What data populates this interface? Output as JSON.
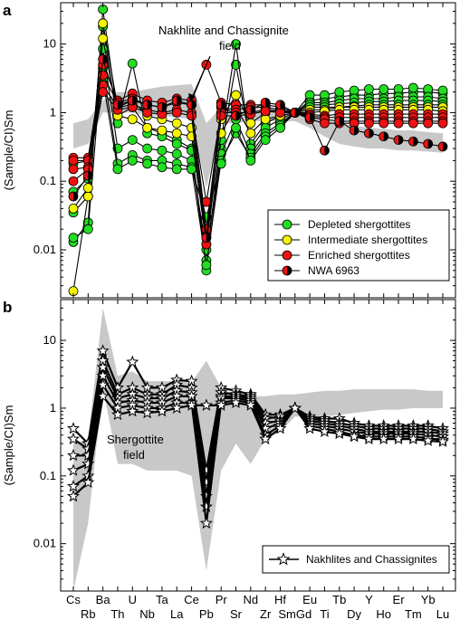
{
  "chart_data": [
    {
      "panel": "a",
      "type": "line",
      "ylabel": "(Sample/CI)Sm",
      "yscale": "log",
      "ylim": [
        0.002,
        40
      ],
      "yticks": [
        "0.01",
        "0.1",
        "1",
        "10"
      ],
      "x_elements": [
        "Cs",
        "Rb",
        "Ba",
        "Th",
        "U",
        "Nb",
        "Ta",
        "La",
        "Ce",
        "Pb",
        "Pr",
        "Sr",
        "Nd",
        "Zr",
        "Hf",
        "SmGd",
        "Eu",
        "Ti",
        "Tb",
        "Dy",
        "Y",
        "Ho",
        "Er",
        "Tm",
        "Yb",
        "Lu"
      ],
      "annotation": "Nakhlite and Chassignite field",
      "field": {
        "upper": [
          0.7,
          0.8,
          1.5,
          2.0,
          2.0,
          2.2,
          2.4,
          2.5,
          2.6,
          0.7,
          1.2,
          1.1,
          1.2,
          1.15,
          1.1,
          1.0,
          0.9,
          0.8,
          0.7,
          0.65,
          0.6,
          0.58,
          0.55,
          0.55,
          0.52,
          0.5
        ],
        "lower": [
          0.3,
          0.35,
          1.0,
          1.0,
          1.0,
          0.9,
          0.9,
          0.85,
          0.8,
          0.08,
          0.7,
          0.7,
          0.75,
          0.75,
          0.75,
          0.75,
          0.6,
          0.45,
          0.35,
          0.32,
          0.3,
          0.3,
          0.28,
          0.28,
          0.27,
          0.26
        ]
      },
      "legend": [
        "Depleted shergottites",
        "Intermediate shergottites",
        "Enriched shergottites",
        "NWA 6963"
      ],
      "series": [
        {
          "group": "depleted",
          "values": [
            0.013,
            0.025,
            32,
            0.9,
            1.2,
            0.6,
            0.5,
            0.4,
            0.3,
            0.005,
            0.3,
            5.0,
            0.35,
            0.7,
            0.9,
            1.0,
            1.5,
            1.6,
            1.7,
            1.8,
            1.8,
            1.9,
            1.9,
            2.0,
            2.0,
            1.9
          ]
        },
        {
          "group": "depleted",
          "values": [
            0.035,
            0.06,
            18,
            0.7,
            5.2,
            0.5,
            0.45,
            0.35,
            0.28,
            0.007,
            0.4,
            10.0,
            0.3,
            0.6,
            0.8,
            1.0,
            1.8,
            1.8,
            2.0,
            2.1,
            2.2,
            2.2,
            2.2,
            2.3,
            2.2,
            2.1
          ]
        },
        {
          "group": "depleted",
          "values": [
            0.015,
            0.02,
            8.5,
            0.3,
            0.4,
            0.3,
            0.28,
            0.25,
            0.2,
            0.01,
            0.25,
            0.8,
            0.25,
            0.5,
            0.7,
            1.0,
            1.4,
            1.4,
            1.5,
            1.6,
            1.6,
            1.6,
            1.7,
            1.7,
            1.7,
            1.6
          ]
        },
        {
          "group": "depleted",
          "values": [
            0.07,
            0.11,
            4.5,
            0.18,
            0.24,
            0.2,
            0.2,
            0.18,
            0.16,
            0.006,
            0.2,
            0.5,
            0.22,
            0.45,
            0.65,
            1.0,
            1.3,
            1.3,
            1.35,
            1.4,
            1.45,
            1.45,
            1.5,
            1.5,
            1.5,
            1.45
          ]
        },
        {
          "group": "depleted",
          "values": [
            0.18,
            0.2,
            3.0,
            0.15,
            0.2,
            0.18,
            0.16,
            0.15,
            0.15,
            0.03,
            0.18,
            0.6,
            0.2,
            0.4,
            0.6,
            1.0,
            1.2,
            1.2,
            1.2,
            1.25,
            1.3,
            1.3,
            1.3,
            1.3,
            1.3,
            1.3
          ]
        },
        {
          "group": "intermediate",
          "values": [
            0.0025,
            0.06,
            20,
            1.2,
            1.5,
            0.9,
            0.8,
            0.7,
            0.6,
            0.015,
            0.8,
            1.8,
            0.7,
            1.0,
            1.1,
            1.0,
            1.1,
            1.1,
            1.2,
            1.2,
            1.2,
            1.2,
            1.2,
            1.2,
            1.2,
            1.2
          ]
        },
        {
          "group": "intermediate",
          "values": [
            0.04,
            0.08,
            12,
            0.9,
            0.8,
            0.6,
            0.55,
            0.5,
            0.45,
            0.012,
            0.5,
            1.2,
            0.5,
            0.8,
            0.9,
            1.0,
            1.0,
            1.05,
            1.1,
            1.1,
            1.1,
            1.1,
            1.1,
            1.1,
            1.1,
            1.05
          ]
        },
        {
          "group": "enriched",
          "values": [
            0.22,
            0.22,
            5.0,
            1.5,
            1.9,
            1.5,
            1.4,
            1.6,
            1.5,
            5.0,
            1.4,
            1.3,
            1.3,
            1.3,
            1.2,
            1.0,
            0.95,
            0.9,
            0.95,
            0.95,
            0.95,
            0.95,
            0.95,
            0.95,
            0.95,
            0.95
          ]
        },
        {
          "group": "enriched",
          "values": [
            0.2,
            0.2,
            3.5,
            1.4,
            1.6,
            1.3,
            1.2,
            1.4,
            1.3,
            0.02,
            1.2,
            1.1,
            1.2,
            1.2,
            1.1,
            1.0,
            0.9,
            0.85,
            0.85,
            0.85,
            0.85,
            0.85,
            0.85,
            0.85,
            0.85,
            0.85
          ]
        },
        {
          "group": "enriched",
          "values": [
            0.15,
            0.16,
            2.5,
            1.2,
            1.3,
            1.1,
            1.0,
            1.1,
            1.0,
            0.05,
            1.0,
            1.0,
            1.0,
            1.1,
            1.05,
            1.0,
            0.85,
            0.8,
            0.75,
            0.75,
            0.75,
            0.75,
            0.75,
            0.75,
            0.75,
            0.75
          ]
        },
        {
          "group": "enriched",
          "values": [
            0.1,
            0.15,
            2.0,
            1.1,
            1.2,
            1.0,
            0.95,
            1.0,
            0.9,
            0.012,
            0.9,
            0.9,
            0.95,
            1.05,
            1.0,
            1.0,
            0.8,
            0.7,
            0.7,
            0.7,
            0.7,
            0.7,
            0.7,
            0.7,
            0.7,
            0.7
          ]
        },
        {
          "group": "nwa6963",
          "values": [
            0.06,
            0.12,
            6.0,
            1.3,
            1.5,
            1.3,
            1.2,
            1.5,
            1.3,
            0.015,
            1.3,
            0.9,
            1.1,
            1.4,
            1.3,
            1.0,
            0.85,
            0.28,
            0.75,
            0.55,
            0.5,
            0.45,
            0.4,
            0.38,
            0.35,
            0.32
          ]
        }
      ]
    },
    {
      "panel": "b",
      "type": "line",
      "ylabel": "(Sample/CI)Sm",
      "yscale": "log",
      "ylim": [
        0.002,
        40
      ],
      "yticks": [
        "0.01",
        "0.1",
        "1",
        "10"
      ],
      "x_elements": [
        "Cs",
        "Rb",
        "Ba",
        "Th",
        "U",
        "Nb",
        "Ta",
        "La",
        "Ce",
        "Pb",
        "Pr",
        "Sr",
        "Nd",
        "Zr",
        "Hf",
        "SmGd",
        "Eu",
        "Ti",
        "Tb",
        "Dy",
        "Y",
        "Ho",
        "Er",
        "Tm",
        "Yb",
        "Lu"
      ],
      "field_label": "Shergottite field",
      "field": {
        "upper": [
          0.3,
          0.35,
          30,
          3.0,
          3.5,
          2.5,
          2.5,
          2.5,
          2.4,
          5.0,
          2.0,
          1.5,
          1.5,
          1.5,
          1.6,
          1.6,
          1.7,
          1.8,
          1.8,
          1.9,
          1.9,
          1.9,
          1.9,
          1.9,
          1.8,
          1.8
        ],
        "lower": [
          0.002,
          0.02,
          2.0,
          0.15,
          0.15,
          0.12,
          0.12,
          0.12,
          0.1,
          0.004,
          0.12,
          0.3,
          0.15,
          0.35,
          0.45,
          0.75,
          0.75,
          0.75,
          0.8,
          0.85,
          0.9,
          0.95,
          0.95,
          1.0,
          1.0,
          1.0
        ]
      },
      "legend": [
        "Nakhlites and Chassignites"
      ],
      "series": [
        {
          "group": "nakhlite",
          "values": [
            0.5,
            0.3,
            7.0,
            2.0,
            4.8,
            2.0,
            2.0,
            2.6,
            2.5,
            0.12,
            2.0,
            1.8,
            1.6,
            0.8,
            0.8,
            1.0,
            0.75,
            0.7,
            0.7,
            0.6,
            0.55,
            0.55,
            0.55,
            0.55,
            0.55,
            0.5
          ]
        },
        {
          "group": "nakhlite",
          "values": [
            0.35,
            0.25,
            5.0,
            1.6,
            2.0,
            1.6,
            1.6,
            2.2,
            2.0,
            0.08,
            1.7,
            1.6,
            1.5,
            0.7,
            0.75,
            1.0,
            0.7,
            0.65,
            0.6,
            0.55,
            0.5,
            0.5,
            0.5,
            0.5,
            0.5,
            0.45
          ]
        },
        {
          "group": "nakhlite",
          "values": [
            0.2,
            0.2,
            4.0,
            1.4,
            1.6,
            1.4,
            1.4,
            1.8,
            1.7,
            0.05,
            1.5,
            1.5,
            1.4,
            0.6,
            0.65,
            1.0,
            0.65,
            0.6,
            0.55,
            0.5,
            0.45,
            0.45,
            0.45,
            0.45,
            0.45,
            0.42
          ]
        },
        {
          "group": "nakhlite",
          "values": [
            0.12,
            0.15,
            3.0,
            1.2,
            1.3,
            1.2,
            1.2,
            1.5,
            1.5,
            0.035,
            1.4,
            1.4,
            1.3,
            0.5,
            0.6,
            1.0,
            0.6,
            0.55,
            0.5,
            0.45,
            0.42,
            0.42,
            0.42,
            0.42,
            0.4,
            0.38
          ]
        },
        {
          "group": "nakhlite",
          "values": [
            0.07,
            0.1,
            2.2,
            1.0,
            1.1,
            1.0,
            1.0,
            1.2,
            1.2,
            0.02,
            1.2,
            1.3,
            1.2,
            0.4,
            0.55,
            1.0,
            0.55,
            0.5,
            0.45,
            0.4,
            0.38,
            0.38,
            0.38,
            0.38,
            0.36,
            0.34
          ]
        },
        {
          "group": "nakhlite",
          "values": [
            0.05,
            0.08,
            1.5,
            0.8,
            0.9,
            0.85,
            0.9,
            1.0,
            1.1,
            1.1,
            1.1,
            1.2,
            1.1,
            0.35,
            0.5,
            1.0,
            0.5,
            0.45,
            0.42,
            0.38,
            0.35,
            0.35,
            0.35,
            0.35,
            0.33,
            0.32
          ]
        }
      ]
    }
  ],
  "colors": {
    "depleted": "#22dd22",
    "intermediate": "#f4f400",
    "enriched": "#ee1111",
    "field": "#c8c8c8"
  }
}
